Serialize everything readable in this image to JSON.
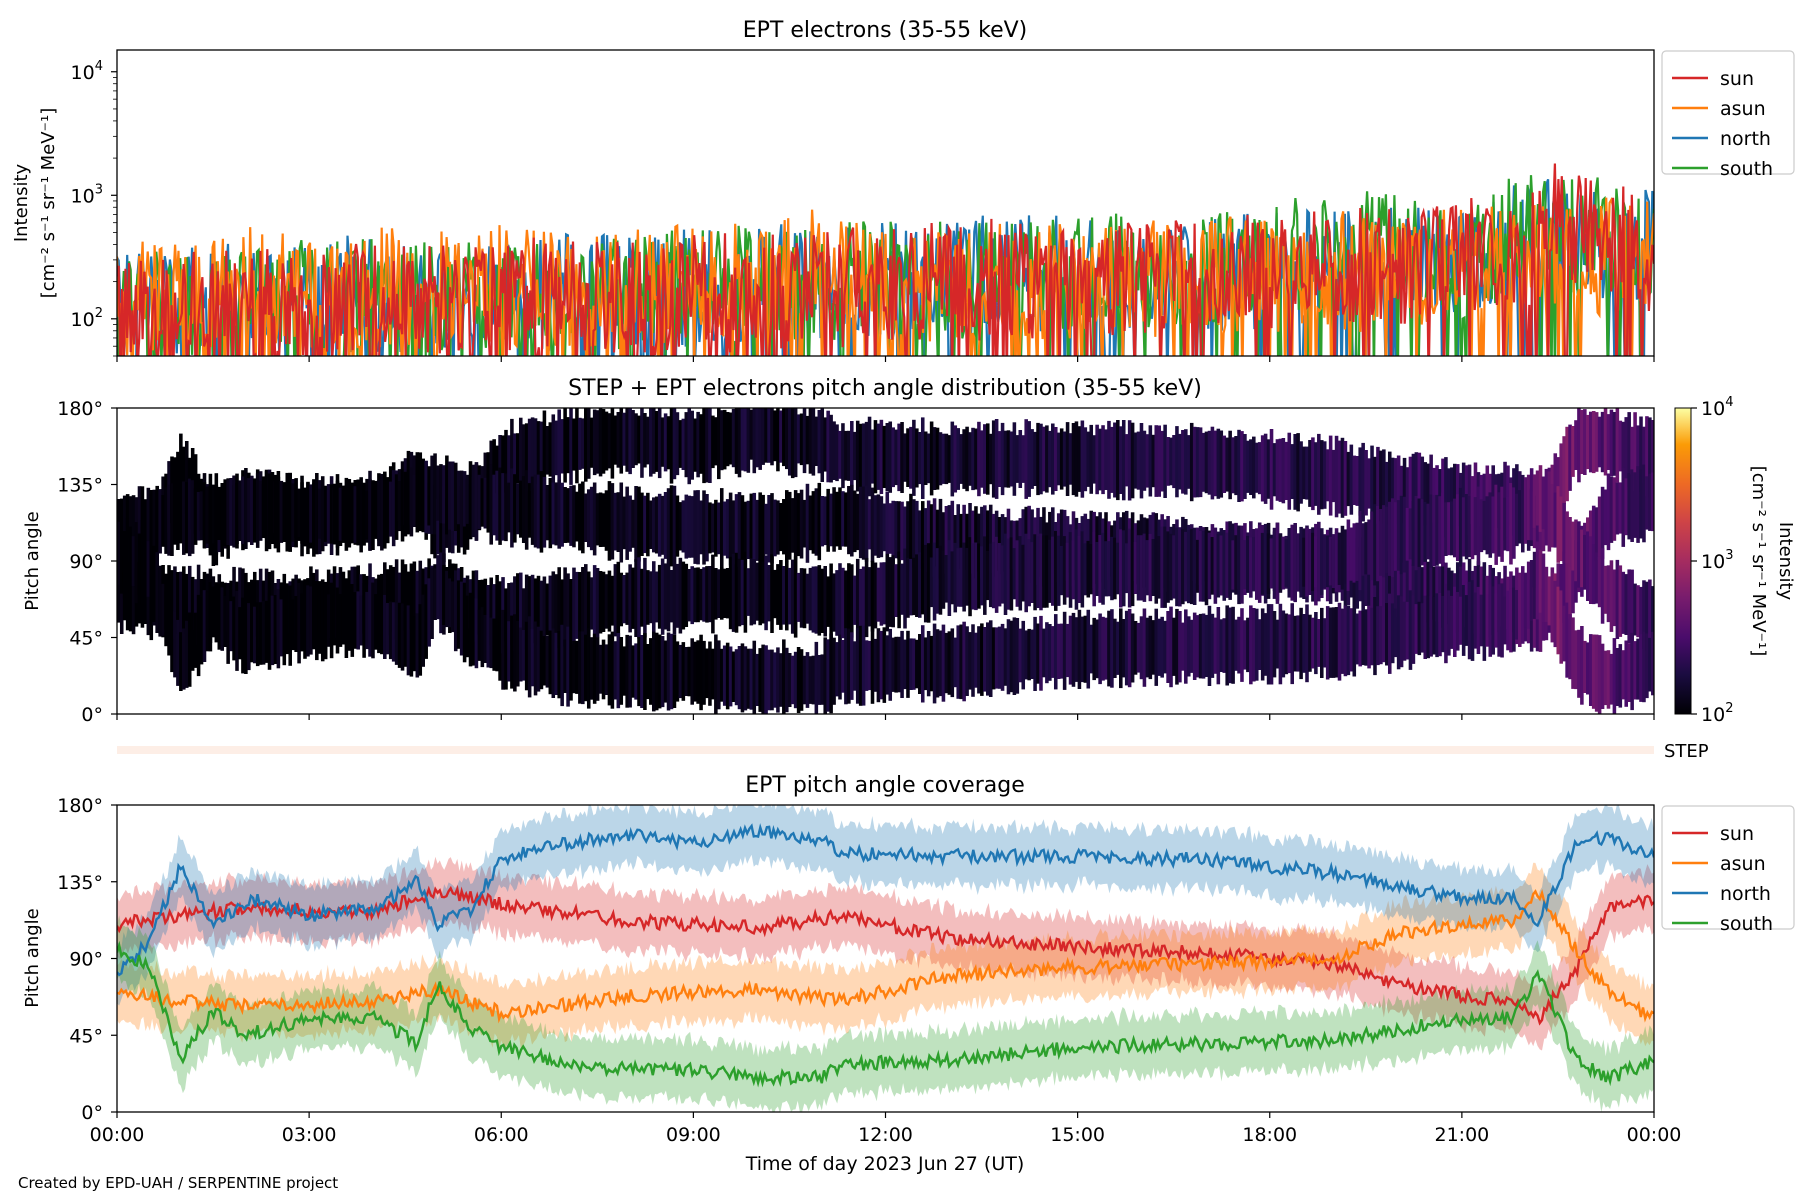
{
  "credit": "Created by EPD-UAH / SERPENTINE project",
  "xlabel": "Time of day 2023 Jun 27 (UT)",
  "xticks": [
    "00:00",
    "03:00",
    "06:00",
    "09:00",
    "12:00",
    "15:00",
    "18:00",
    "21:00",
    "00:00"
  ],
  "colors": {
    "sun": "#d62728",
    "asun": "#ff7f0e",
    "north": "#1f77b4",
    "south": "#2ca02c"
  },
  "chart_data": [
    {
      "type": "line",
      "title": "EPT electrons (35-55 keV)",
      "ylabel_line1": "Intensity",
      "ylabel_line2": "[cm⁻² s⁻¹ sr⁻¹ MeV⁻¹]",
      "yscale": "log",
      "ylim": [
        50,
        15000
      ],
      "yticks": [
        {
          "base": "10",
          "exp": "2",
          "value": 100
        },
        {
          "base": "10",
          "exp": "3",
          "value": 1000
        },
        {
          "base": "10",
          "exp": "4",
          "value": 10000
        }
      ],
      "xlim_hours": [
        0,
        24
      ],
      "legend": [
        "sun",
        "asun",
        "north",
        "south"
      ],
      "legend_position": "outside-right",
      "series": [
        {
          "name": "north",
          "x_hours": [
            0,
            2,
            4,
            6,
            8,
            10,
            12,
            14,
            16,
            18,
            19.5,
            21,
            22,
            23,
            24
          ],
          "values": [
            120,
            140,
            150,
            160,
            170,
            180,
            200,
            210,
            220,
            240,
            300,
            260,
            420,
            420,
            380
          ]
        },
        {
          "name": "south",
          "x_hours": [
            0,
            2,
            4,
            6,
            8,
            10,
            12,
            14,
            16,
            18,
            19.3,
            21,
            22,
            23,
            24
          ],
          "values": [
            110,
            130,
            150,
            160,
            170,
            190,
            200,
            210,
            230,
            260,
            450,
            280,
            500,
            450,
            350
          ]
        },
        {
          "name": "asun",
          "x_hours": [
            0,
            2,
            4,
            6,
            8,
            10,
            11,
            12,
            14,
            16,
            18,
            20,
            22,
            23,
            24
          ],
          "values": [
            150,
            170,
            170,
            175,
            180,
            200,
            300,
            190,
            200,
            210,
            220,
            230,
            300,
            320,
            300
          ]
        },
        {
          "name": "sun",
          "x_hours": [
            0,
            2,
            4,
            6,
            8,
            10,
            12,
            14,
            16,
            18,
            20,
            22,
            22.5,
            23,
            24
          ],
          "values": [
            110,
            120,
            130,
            140,
            150,
            160,
            180,
            200,
            220,
            240,
            260,
            350,
            600,
            500,
            300
          ]
        }
      ]
    },
    {
      "type": "heatmap",
      "title": "STEP + EPT electrons pitch angle distribution (35-55 keV)",
      "ylabel": "Pitch angle",
      "ylim": [
        0,
        180
      ],
      "yticks": [
        "0°",
        "45°",
        "90°",
        "135°",
        "180°"
      ],
      "xlim_hours": [
        0,
        24
      ],
      "colorbar": {
        "label_line1": "Intensity",
        "label_line2": "[cm⁻² s⁻¹ sr⁻¹ MeV⁻¹]",
        "scale": "log",
        "ticks": [
          {
            "base": "10",
            "exp": "2",
            "value": 100
          },
          {
            "base": "10",
            "exp": "3",
            "value": 1000
          },
          {
            "base": "10",
            "exp": "4",
            "value": 10000
          }
        ],
        "colormap": "inferno",
        "range": [
          100,
          10000
        ]
      }
    },
    {
      "type": "bar",
      "label": "STEP",
      "note": "thin STEP coverage strip (pale)"
    },
    {
      "type": "line",
      "title": "EPT pitch angle coverage",
      "ylabel": "Pitch angle",
      "ylim": [
        0,
        180
      ],
      "yticks": [
        "0°",
        "45°",
        "90°",
        "135°",
        "180°"
      ],
      "xlim_hours": [
        0,
        24
      ],
      "legend": [
        "sun",
        "asun",
        "north",
        "south"
      ],
      "legend_position": "outside-right",
      "series": [
        {
          "name": "sun",
          "x_hours": [
            0,
            1,
            2,
            3,
            4,
            5,
            6,
            8,
            10,
            11.3,
            13,
            15,
            17,
            19,
            20,
            21,
            21.8,
            22.2,
            22.8,
            23.3,
            24
          ],
          "values": [
            110,
            115,
            120,
            118,
            117,
            130,
            122,
            112,
            108,
            115,
            102,
            97,
            93,
            87,
            75,
            68,
            65,
            55,
            85,
            120,
            125
          ]
        },
        {
          "name": "asun",
          "x_hours": [
            0,
            1,
            2,
            3,
            4,
            5,
            6,
            8,
            10,
            11.3,
            13,
            15,
            17,
            19,
            20,
            21,
            21.8,
            22.2,
            22.8,
            23.3,
            24
          ],
          "values": [
            70,
            65,
            62,
            63,
            65,
            72,
            58,
            68,
            72,
            65,
            80,
            85,
            87,
            90,
            105,
            110,
            112,
            128,
            95,
            70,
            55
          ]
        },
        {
          "name": "north",
          "x_hours": [
            0,
            0.5,
            1,
            1.5,
            2.2,
            3,
            4,
            4.7,
            5,
            5.5,
            6,
            7,
            8,
            9,
            10,
            11,
            11.3,
            13,
            15,
            17,
            19,
            20,
            21,
            21.8,
            22.2,
            22.8,
            23.3,
            24
          ],
          "values": [
            80,
            100,
            145,
            110,
            125,
            115,
            120,
            135,
            110,
            118,
            148,
            158,
            162,
            158,
            165,
            160,
            152,
            150,
            150,
            148,
            140,
            132,
            126,
            125,
            112,
            160,
            160,
            150
          ]
        },
        {
          "name": "south",
          "x_hours": [
            0,
            0.5,
            1,
            1.5,
            2,
            3,
            4,
            4.7,
            5,
            5.5,
            6,
            7,
            8,
            9,
            10,
            11,
            11.3,
            13,
            15,
            17,
            19,
            20,
            21,
            21.8,
            22.2,
            22.8,
            23.3,
            24
          ],
          "values": [
            95,
            85,
            30,
            60,
            45,
            55,
            55,
            40,
            75,
            50,
            38,
            28,
            25,
            25,
            20,
            20,
            28,
            30,
            38,
            40,
            42,
            48,
            55,
            55,
            80,
            30,
            20,
            30
          ]
        }
      ]
    }
  ]
}
